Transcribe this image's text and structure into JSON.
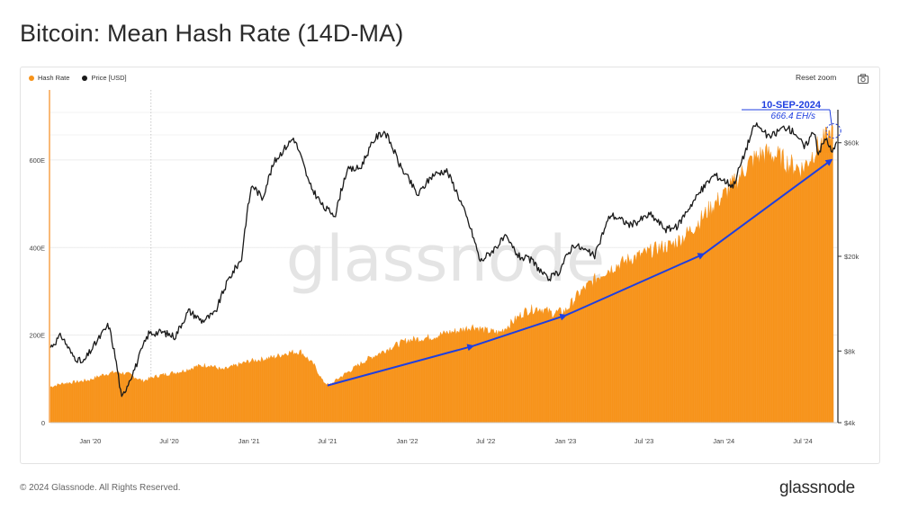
{
  "page": {
    "title": "Bitcoin: Mean Hash Rate (14D-MA)",
    "footer_copyright": "© 2024 Glassnode. All Rights Reserved.",
    "footer_logo": "glassnode",
    "watermark": "glassnode"
  },
  "toolbar": {
    "reset_zoom_label": "Reset zoom",
    "camera_icon": "camera-icon"
  },
  "colors": {
    "hash_rate": "#f7931a",
    "price": "#1a1a1a",
    "annotation": "#1f3fe0",
    "watermark": "#d9d9d9"
  },
  "annotation": {
    "date": "10-SEP-2024",
    "value": "666.4 EH/s"
  },
  "chart_data": {
    "type": "area",
    "title": "Bitcoin: Mean Hash Rate (14D-MA)",
    "legend": {
      "placement": "top-left",
      "entries": [
        "Hash Rate",
        "Price [USD]"
      ]
    },
    "x_ticks": [
      "Jan '20",
      "Jul '20",
      "Jan '21",
      "Jul '21",
      "Jan '22",
      "Jul '22",
      "Jan '23",
      "Jul '23",
      "Jan '24",
      "Jul '24"
    ],
    "x_range": [
      "2019-10-01",
      "2024-09-18"
    ],
    "y_left": {
      "scale": "linear",
      "range": [
        0,
        760
      ],
      "ticks": [
        0,
        200,
        400,
        600
      ],
      "tick_labels": [
        "0",
        "200E",
        "400E",
        "600E"
      ],
      "unit": "EH/s"
    },
    "y_right": {
      "scale": "log",
      "range": [
        4000,
        100000
      ],
      "ticks": [
        4000,
        8000,
        20000,
        60000
      ],
      "tick_labels": [
        "$4k",
        "$8k",
        "$20k",
        "$60k"
      ]
    },
    "grid": true,
    "series": [
      {
        "name": "Hash Rate",
        "axis": "left",
        "style": "area",
        "points": [
          [
            "2019-10-01",
            82
          ],
          [
            "2019-11-01",
            90
          ],
          [
            "2019-12-01",
            93
          ],
          [
            "2020-01-01",
            98
          ],
          [
            "2020-02-01",
            110
          ],
          [
            "2020-03-01",
            116
          ],
          [
            "2020-04-01",
            110
          ],
          [
            "2020-05-01",
            95
          ],
          [
            "2020-06-01",
            106
          ],
          [
            "2020-07-01",
            112
          ],
          [
            "2020-08-01",
            118
          ],
          [
            "2020-09-01",
            128
          ],
          [
            "2020-10-01",
            132
          ],
          [
            "2020-11-01",
            120
          ],
          [
            "2020-12-01",
            130
          ],
          [
            "2021-01-01",
            140
          ],
          [
            "2021-02-01",
            145
          ],
          [
            "2021-03-01",
            150
          ],
          [
            "2021-04-01",
            160
          ],
          [
            "2021-05-01",
            162
          ],
          [
            "2021-06-01",
            130
          ],
          [
            "2021-06-20",
            95
          ],
          [
            "2021-07-05",
            85
          ],
          [
            "2021-08-01",
            105
          ],
          [
            "2021-09-01",
            125
          ],
          [
            "2021-10-01",
            145
          ],
          [
            "2021-11-01",
            160
          ],
          [
            "2021-12-01",
            175
          ],
          [
            "2022-01-01",
            188
          ],
          [
            "2022-02-01",
            192
          ],
          [
            "2022-03-01",
            196
          ],
          [
            "2022-04-01",
            205
          ],
          [
            "2022-05-01",
            210
          ],
          [
            "2022-06-01",
            220
          ],
          [
            "2022-07-01",
            210
          ],
          [
            "2022-08-01",
            205
          ],
          [
            "2022-09-01",
            230
          ],
          [
            "2022-10-01",
            255
          ],
          [
            "2022-11-01",
            262
          ],
          [
            "2022-12-01",
            250
          ],
          [
            "2023-01-01",
            255
          ],
          [
            "2023-02-01",
            295
          ],
          [
            "2023-03-01",
            320
          ],
          [
            "2023-04-01",
            345
          ],
          [
            "2023-05-01",
            360
          ],
          [
            "2023-06-01",
            375
          ],
          [
            "2023-07-01",
            385
          ],
          [
            "2023-08-01",
            398
          ],
          [
            "2023-09-01",
            405
          ],
          [
            "2023-10-01",
            425
          ],
          [
            "2023-11-01",
            455
          ],
          [
            "2023-12-01",
            490
          ],
          [
            "2024-01-01",
            520
          ],
          [
            "2024-02-01",
            555
          ],
          [
            "2024-03-01",
            595
          ],
          [
            "2024-04-01",
            615
          ],
          [
            "2024-05-01",
            610
          ],
          [
            "2024-06-01",
            590
          ],
          [
            "2024-07-01",
            580
          ],
          [
            "2024-08-01",
            625
          ],
          [
            "2024-09-10",
            666.4
          ]
        ]
      },
      {
        "name": "Price [USD]",
        "axis": "right",
        "style": "line",
        "points": [
          [
            "2019-10-01",
            8300
          ],
          [
            "2019-10-26",
            9300
          ],
          [
            "2019-11-20",
            7700
          ],
          [
            "2019-12-15",
            7100
          ],
          [
            "2020-01-15",
            8700
          ],
          [
            "2020-02-12",
            10300
          ],
          [
            "2020-03-13",
            5000
          ],
          [
            "2020-04-15",
            6900
          ],
          [
            "2020-05-15",
            9500
          ],
          [
            "2020-06-15",
            9600
          ],
          [
            "2020-07-15",
            9200
          ],
          [
            "2020-08-15",
            11800
          ],
          [
            "2020-09-15",
            10700
          ],
          [
            "2020-10-15",
            11500
          ],
          [
            "2020-11-15",
            16000
          ],
          [
            "2020-12-15",
            19500
          ],
          [
            "2021-01-08",
            40000
          ],
          [
            "2021-02-01",
            35000
          ],
          [
            "2021-03-01",
            50000
          ],
          [
            "2021-04-14",
            63000
          ],
          [
            "2021-05-20",
            40000
          ],
          [
            "2021-06-22",
            32000
          ],
          [
            "2021-07-20",
            30000
          ],
          [
            "2021-08-15",
            46000
          ],
          [
            "2021-09-15",
            47000
          ],
          [
            "2021-10-20",
            63000
          ],
          [
            "2021-11-10",
            67000
          ],
          [
            "2021-12-15",
            48000
          ],
          [
            "2022-01-25",
            36000
          ],
          [
            "2022-03-01",
            44000
          ],
          [
            "2022-04-01",
            46000
          ],
          [
            "2022-05-15",
            30000
          ],
          [
            "2022-06-18",
            19000
          ],
          [
            "2022-07-15",
            21000
          ],
          [
            "2022-08-15",
            24000
          ],
          [
            "2022-09-15",
            20000
          ],
          [
            "2022-10-15",
            19200
          ],
          [
            "2022-11-20",
            16000
          ],
          [
            "2022-12-15",
            17000
          ],
          [
            "2023-01-20",
            22500
          ],
          [
            "2023-03-10",
            20000
          ],
          [
            "2023-04-15",
            30000
          ],
          [
            "2023-06-01",
            27000
          ],
          [
            "2023-07-15",
            30000
          ],
          [
            "2023-08-20",
            26000
          ],
          [
            "2023-09-15",
            26500
          ],
          [
            "2023-10-25",
            34500
          ],
          [
            "2023-12-10",
            44000
          ],
          [
            "2024-01-23",
            39500
          ],
          [
            "2024-02-15",
            52000
          ],
          [
            "2024-03-14",
            72000
          ],
          [
            "2024-04-15",
            63000
          ],
          [
            "2024-05-20",
            70000
          ],
          [
            "2024-06-15",
            66000
          ],
          [
            "2024-07-05",
            57000
          ],
          [
            "2024-07-28",
            68000
          ],
          [
            "2024-08-05",
            54000
          ],
          [
            "2024-08-25",
            63000
          ],
          [
            "2024-09-06",
            54000
          ],
          [
            "2024-09-18",
            60000
          ]
        ]
      }
    ],
    "annotations": [
      {
        "type": "arrow",
        "from": [
          "2021-07-01",
          85
        ],
        "to": [
          "2022-06-01",
          175
        ]
      },
      {
        "type": "arrow",
        "from": [
          "2022-06-01",
          175
        ],
        "to": [
          "2023-01-01",
          245
        ]
      },
      {
        "type": "arrow",
        "from": [
          "2023-01-01",
          245
        ],
        "to": [
          "2023-11-15",
          385
        ]
      },
      {
        "type": "arrow",
        "from": [
          "2023-11-15",
          385
        ],
        "to": [
          "2024-09-05",
          600
        ]
      }
    ]
  }
}
